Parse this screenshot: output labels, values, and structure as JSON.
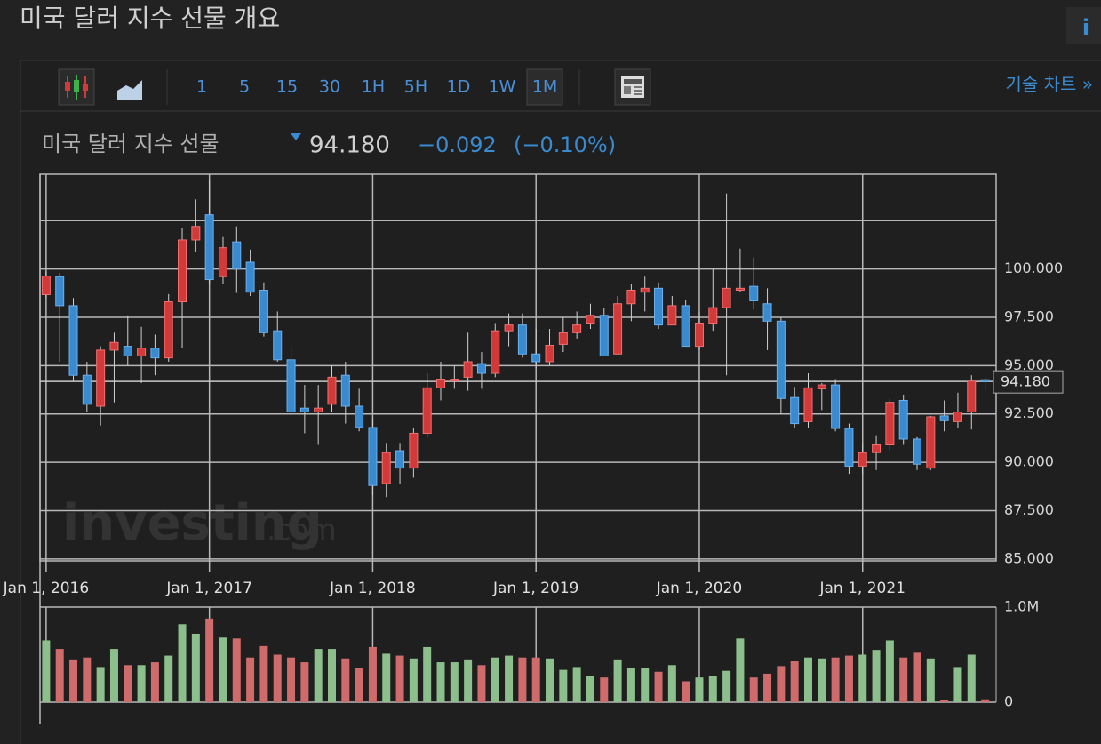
{
  "page": {
    "title": "미국 달러 지수 선물 개요",
    "info_icon": "i",
    "toolbar": {
      "intervals": [
        "1",
        "5",
        "15",
        "30",
        "1H",
        "5H",
        "1D",
        "1W",
        "1M"
      ],
      "active_interval": 8,
      "tech_chart_link": "기술 차트 »"
    },
    "quote": {
      "name": "미국 달러 지수 선물",
      "price": "94.180",
      "change": "−0.092",
      "change_pct": "(−0.10%)"
    },
    "watermark": [
      "investing",
      ".com"
    ]
  },
  "chart_data": {
    "type": "candlestick",
    "categories": [
      "Jan 1, 2016",
      null,
      null,
      null,
      null,
      null,
      null,
      null,
      null,
      null,
      null,
      null,
      "Jan 1, 2017",
      null,
      null,
      null,
      null,
      null,
      null,
      null,
      null,
      null,
      null,
      null,
      "Jan 1, 2018",
      null,
      null,
      null,
      null,
      null,
      null,
      null,
      null,
      null,
      null,
      null,
      "Jan 1, 2019",
      null,
      null,
      null,
      null,
      null,
      null,
      null,
      null,
      null,
      null,
      null,
      "Jan 1, 2020",
      null,
      null,
      null,
      null,
      null,
      null,
      null,
      null,
      null,
      null,
      null,
      "Jan 1, 2021",
      null,
      null,
      null,
      null,
      null,
      null,
      null,
      null,
      null
    ],
    "open": [
      98.67,
      99.6,
      98.1,
      94.5,
      92.9,
      95.8,
      96.0,
      95.5,
      95.9,
      95.4,
      98.3,
      101.5,
      102.8,
      99.6,
      101.4,
      100.35,
      98.9,
      96.8,
      95.3,
      92.8,
      92.6,
      93.0,
      94.5,
      92.9,
      91.8,
      88.9,
      90.6,
      89.7,
      91.5,
      93.85,
      94.2,
      94.4,
      95.1,
      94.6,
      96.8,
      97.1,
      95.6,
      95.2,
      96.1,
      96.7,
      97.2,
      97.6,
      95.6,
      98.2,
      98.8,
      99.0,
      97.1,
      98.1,
      96.0,
      97.2,
      98.0,
      98.9,
      99.1,
      98.2,
      97.3,
      93.35,
      92.1,
      93.8,
      94.0,
      91.75,
      89.8,
      90.5,
      90.9,
      93.2,
      91.2,
      89.7,
      92.4,
      92.1,
      92.6,
      94.27
    ],
    "high": [
      99.85,
      99.8,
      98.5,
      95.2,
      96.0,
      96.7,
      97.6,
      97.0,
      96.6,
      98.7,
      102.1,
      103.6,
      104.6,
      101.65,
      102.2,
      101.0,
      99.3,
      97.8,
      96.0,
      94.0,
      94.0,
      95.0,
      95.2,
      93.8,
      92.3,
      91.0,
      91.0,
      91.8,
      94.6,
      95.2,
      95.0,
      96.7,
      95.7,
      97.2,
      97.7,
      97.7,
      96.9,
      96.9,
      97.5,
      97.8,
      98.2,
      98.0,
      98.6,
      99.2,
      99.6,
      99.3,
      98.6,
      98.4,
      97.8,
      100.0,
      103.9,
      101.05,
      100.6,
      99.0,
      97.5,
      93.9,
      94.6,
      94.1,
      94.3,
      92.0,
      91.0,
      91.4,
      93.3,
      93.5,
      91.3,
      92.4,
      93.2,
      93.6,
      94.5,
      94.4
    ],
    "low": [
      98.5,
      95.2,
      94.2,
      92.6,
      91.9,
      93.1,
      95.0,
      94.1,
      94.5,
      95.2,
      95.9,
      100.9,
      99.2,
      99.2,
      98.76,
      98.6,
      96.5,
      95.2,
      92.5,
      91.5,
      90.9,
      92.6,
      92.0,
      91.6,
      88.3,
      88.2,
      88.9,
      89.2,
      91.3,
      93.2,
      93.8,
      93.7,
      93.8,
      94.4,
      96.0,
      95.4,
      94.9,
      95.0,
      95.7,
      96.4,
      96.9,
      95.5,
      95.6,
      97.3,
      97.8,
      96.9,
      97.1,
      96.0,
      95.8,
      96.8,
      94.5,
      98.8,
      97.9,
      95.8,
      92.5,
      91.8,
      91.8,
      92.7,
      91.6,
      89.4,
      89.4,
      89.6,
      90.6,
      90.9,
      89.6,
      89.6,
      91.6,
      91.8,
      91.7,
      93.7
    ],
    "close": [
      99.63,
      98.1,
      94.5,
      93.0,
      95.8,
      96.2,
      95.5,
      95.9,
      95.4,
      98.3,
      101.5,
      102.2,
      99.45,
      101.1,
      100.0,
      98.8,
      96.7,
      95.3,
      92.6,
      92.6,
      92.8,
      94.4,
      92.9,
      91.8,
      88.8,
      90.5,
      89.7,
      91.5,
      93.85,
      94.3,
      94.3,
      95.2,
      94.6,
      96.8,
      97.1,
      95.6,
      95.2,
      96.05,
      96.7,
      97.1,
      97.6,
      95.5,
      98.2,
      98.9,
      99.0,
      97.1,
      98.1,
      96.0,
      97.2,
      98.0,
      99.0,
      99.0,
      98.35,
      97.3,
      93.3,
      92.0,
      93.85,
      94.0,
      91.75,
      89.8,
      90.5,
      90.9,
      93.1,
      91.2,
      89.9,
      92.35,
      92.15,
      92.6,
      94.2,
      94.18
    ],
    "volume": [
      650000,
      560000,
      450000,
      470000,
      370000,
      560000,
      390000,
      390000,
      420000,
      490000,
      820000,
      720000,
      880000,
      680000,
      670000,
      470000,
      590000,
      500000,
      470000,
      420000,
      560000,
      560000,
      460000,
      360000,
      580000,
      510000,
      490000,
      460000,
      580000,
      420000,
      420000,
      450000,
      390000,
      470000,
      490000,
      470000,
      470000,
      460000,
      340000,
      370000,
      280000,
      260000,
      450000,
      360000,
      360000,
      320000,
      390000,
      220000,
      260000,
      280000,
      330000,
      670000,
      260000,
      300000,
      380000,
      430000,
      470000,
      460000,
      470000,
      490000,
      500000,
      550000,
      650000,
      470000,
      520000,
      460000,
      20000,
      370000,
      500000,
      30000
    ],
    "ylim": [
      84.9,
      104.9
    ],
    "yticks": [
      {
        "value": 85,
        "label": "85.000"
      },
      {
        "value": 87.5,
        "label": "87.500"
      },
      {
        "value": 90,
        "label": "90.000"
      },
      {
        "value": 92.5,
        "label": "92.500"
      },
      {
        "value": 95,
        "label": "95.000"
      },
      {
        "value": 97.5,
        "label": "97.500"
      },
      {
        "value": 100,
        "label": "100.000"
      }
    ],
    "minor_gridlines": [
      102.5
    ],
    "y2lim": [
      0,
      1000000
    ],
    "y2ticks": [
      0,
      {
        "value": 1000000,
        "label": "1.0M"
      }
    ],
    "last_price": {
      "value": 94.18,
      "label": "94.180"
    },
    "up_color": "#d23a3a",
    "down_color": "#3a8ad0",
    "volume_up_color": "#8cbf8c",
    "volume_down_color": "#cf6b6b",
    "grid": true
  }
}
